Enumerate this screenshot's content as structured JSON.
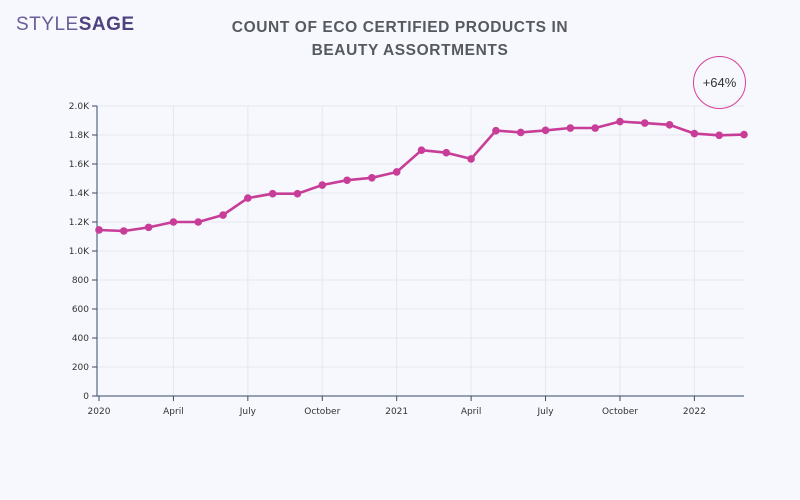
{
  "logo": {
    "part1": "STYLE",
    "part2": "SAGE"
  },
  "header": {
    "title_line1": "COUNT OF ECO CERTIFIED PRODUCTS IN",
    "title_line2": "BEAUTY ASSORTMENTS"
  },
  "badge": {
    "text": "+64%",
    "border_color": "#d6409a"
  },
  "chart_data": {
    "type": "line",
    "title": "COUNT OF ECO CERTIFIED PRODUCTS IN BEAUTY ASSORTMENTS",
    "xlabel": "",
    "ylabel": "",
    "ylim": [
      0,
      2000
    ],
    "y_ticks": [
      "0",
      "200",
      "400",
      "600",
      "800",
      "1.0K",
      "1.2K",
      "1.4K",
      "1.6K",
      "1.8K",
      "2.0K"
    ],
    "x_ticks": [
      "2020",
      "April",
      "July",
      "October",
      "2021",
      "April",
      "July",
      "October",
      "2022"
    ],
    "grid": true,
    "line_color": "#c83d97",
    "series": [
      {
        "values": [
          1145,
          1138,
          1163,
          1200,
          1200,
          1248,
          1365,
          1395,
          1395,
          1455,
          1488,
          1505,
          1545,
          1695,
          1678,
          1635,
          1830,
          1818,
          1832,
          1848,
          1848,
          1893,
          1882,
          1870,
          1810,
          1798,
          1803
        ]
      }
    ]
  }
}
